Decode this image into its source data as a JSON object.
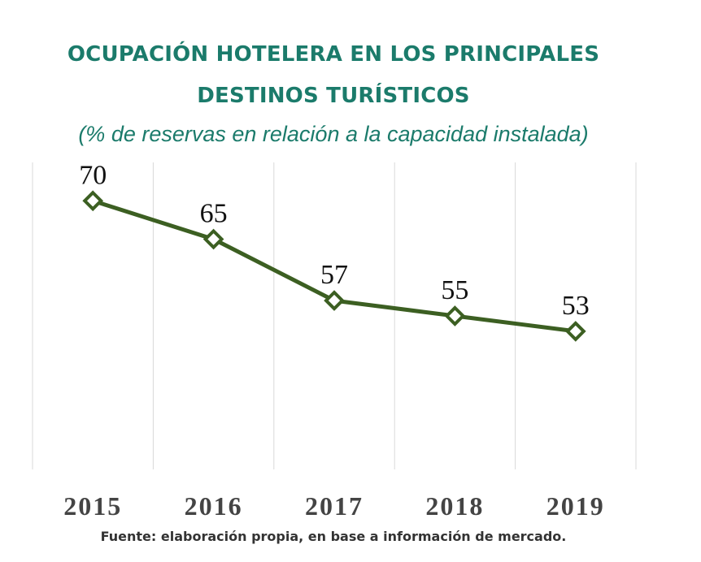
{
  "title_line1": "OCUPACIÓN HOTELERA EN LOS PRINCIPALES",
  "title_line2": "DESTINOS TURÍSTICOS",
  "subtitle": "(% de reservas en relación a la capacidad instalada)",
  "source": "Fuente: elaboración propia, en base a información de mercado.",
  "colors": {
    "title": "#1b7b6b",
    "line": "#3c5f22",
    "marker_fill": "#ffffff",
    "gridline": "#d9d9d9",
    "label": "#111111",
    "tick": "#444444"
  },
  "chart_data": {
    "type": "line",
    "categories": [
      "2015",
      "2016",
      "2017",
      "2018",
      "2019"
    ],
    "series": [
      {
        "values": [
          70,
          65,
          57,
          55,
          53
        ]
      }
    ],
    "data_labels": [
      "70",
      "65",
      "57",
      "55",
      "53"
    ],
    "ylim": [
      35,
      75
    ],
    "grid": "vertical",
    "legend": "none",
    "marker": "diamond"
  }
}
